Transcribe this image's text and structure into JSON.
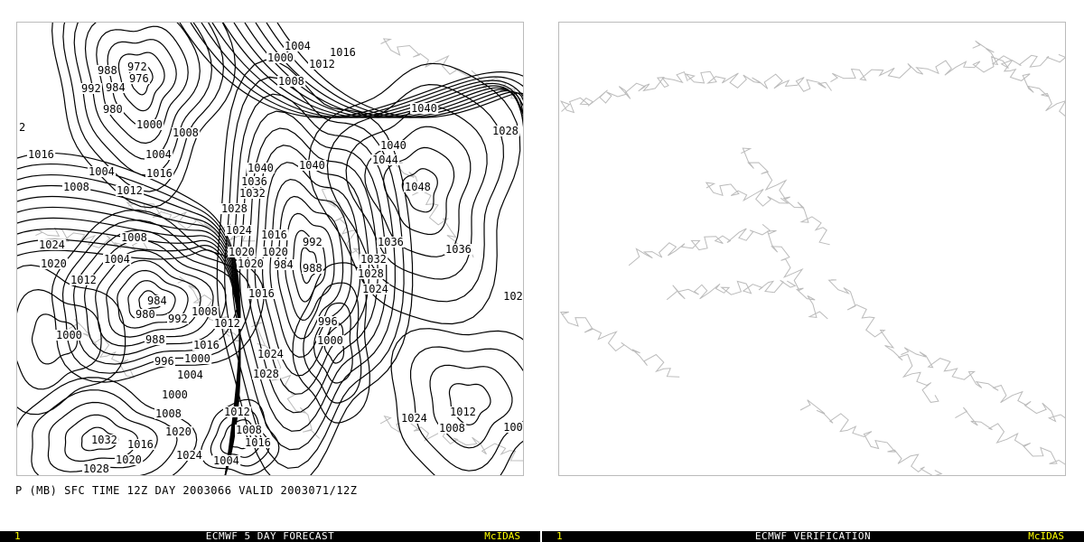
{
  "caption": "P (MB) SFC TIME 12Z DAY 2003066 VALID 2003071/12Z",
  "left_panel": {
    "frame_number": "1",
    "title": "ECMWF 5 DAY FORECAST",
    "brand": "McIDAS",
    "contour_labels": [
      "1000",
      "1004",
      "1016",
      "1012",
      "1008",
      "988",
      "992",
      "976",
      "972",
      "984",
      "980",
      "1040",
      "1028",
      "1008",
      "1004",
      "1000",
      "1016",
      "1016",
      "1012",
      "1004",
      "1008",
      "1040",
      "1040",
      "1044",
      "1040",
      "1036",
      "1032",
      "1028",
      "1048",
      "1024",
      "1024",
      "1008",
      "1020",
      "1016",
      "992",
      "1036",
      "1032",
      "1036",
      "1020",
      "1004",
      "1012",
      "1028",
      "1016",
      "1024",
      "980",
      "984",
      "992",
      "988",
      "1012",
      "1008",
      "1016",
      "996",
      "1000",
      "996",
      "1000",
      "1000",
      "1004",
      "1000",
      "1008",
      "1028",
      "1024",
      "1020",
      "1024",
      "1012",
      "1008",
      "1008",
      "1016",
      "1012",
      "1032",
      "1004",
      "1020",
      "1024",
      "1016",
      "1028",
      "1020",
      "984",
      "988",
      "1020",
      "102",
      "100",
      "2"
    ]
  },
  "right_panel": {
    "frame_number": "1",
    "title": "ECMWF VERIFICATION",
    "brand": "McIDAS"
  },
  "colors": {
    "contour": "#000000",
    "coastline": "#bbbbbb",
    "bar_bg": "#000000",
    "bar_title": "#ffffff",
    "bar_accent": "#ffff00"
  }
}
